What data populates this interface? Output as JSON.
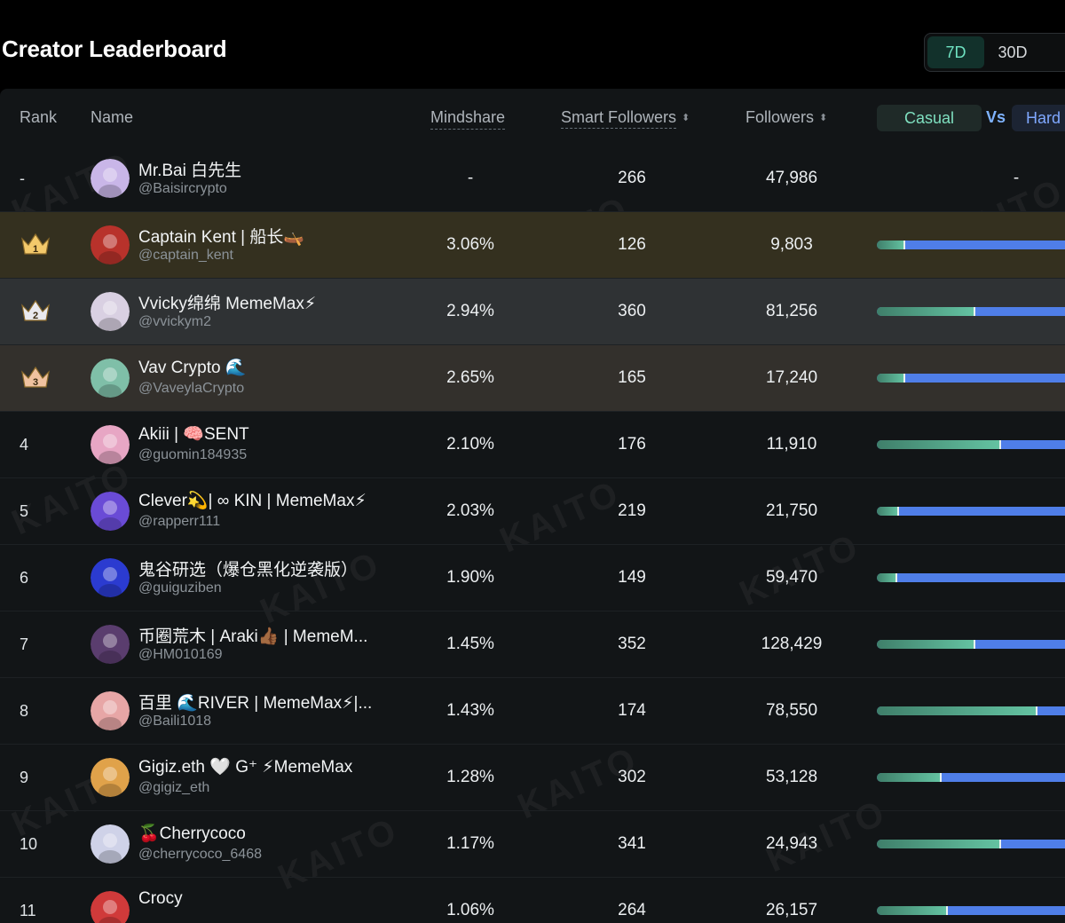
{
  "page": {
    "title": "Creator Leaderboard",
    "periods": [
      "7D",
      "30D"
    ],
    "active_period": "7D"
  },
  "table": {
    "columns": {
      "rank": "Rank",
      "name": "Name",
      "mindshare": "Mindshare",
      "smart_followers": "Smart Followers",
      "followers": "Followers",
      "casual": "Casual",
      "vs": "Vs",
      "hard": "Hard"
    },
    "sort_icon": "⬍",
    "watermark": "KAITO",
    "rows": [
      {
        "rank": "-",
        "crown": null,
        "name": "Mr.Bai 白先生",
        "handle": "@Baisircrypto",
        "mindshare": "-",
        "smart_followers": "266",
        "followers": "47,986",
        "casual_ratio": null,
        "casual_dash": "-",
        "avatar_color": "#c9b6e8",
        "highlight": ""
      },
      {
        "rank": "1",
        "crown": "gold",
        "name": "Captain Kent | 船长🛶",
        "handle": "@captain_kent",
        "mindshare": "3.06%",
        "smart_followers": "126",
        "followers": "9,803",
        "casual_ratio": 0.13,
        "avatar_color": "#b8322b",
        "highlight": "top1"
      },
      {
        "rank": "2",
        "crown": "silver",
        "name": "Vvicky绵绵 MemeMax⚡",
        "handle": "@vvickym2",
        "mindshare": "2.94%",
        "smart_followers": "360",
        "followers": "81,256",
        "casual_ratio": 0.46,
        "avatar_color": "#d9d0e2",
        "highlight": "top2"
      },
      {
        "rank": "3",
        "crown": "bronze",
        "name": "Vav Crypto 🌊",
        "handle": "@VaveylaCrypto",
        "mindshare": "2.65%",
        "smart_followers": "165",
        "followers": "17,240",
        "casual_ratio": 0.13,
        "avatar_color": "#7fbfa8",
        "highlight": "top3"
      },
      {
        "rank": "4",
        "crown": null,
        "name": "Akiii | 🧠SENT",
        "handle": "@guomin184935",
        "mindshare": "2.10%",
        "smart_followers": "176",
        "followers": "11,910",
        "casual_ratio": 0.58,
        "avatar_color": "#e7a6c4",
        "highlight": ""
      },
      {
        "rank": "5",
        "crown": null,
        "name": "Clever💫| ∞ KIN | MemeMax⚡",
        "handle": "@rapperr111",
        "mindshare": "2.03%",
        "smart_followers": "219",
        "followers": "21,750",
        "casual_ratio": 0.1,
        "avatar_color": "#6a4bd6",
        "highlight": ""
      },
      {
        "rank": "6",
        "crown": null,
        "name": "鬼谷研选（爆仓黑化逆袭版）",
        "handle": "@guiguziben",
        "mindshare": "1.90%",
        "smart_followers": "149",
        "followers": "59,470",
        "casual_ratio": 0.09,
        "avatar_color": "#2b3bd0",
        "highlight": ""
      },
      {
        "rank": "7",
        "crown": null,
        "name": "币圈荒木 | Araki👍🏾 | MemeM...",
        "handle": "@HM010169",
        "mindshare": "1.45%",
        "smart_followers": "352",
        "followers": "128,429",
        "casual_ratio": 0.46,
        "avatar_color": "#5a3d6e",
        "highlight": ""
      },
      {
        "rank": "8",
        "crown": null,
        "name": "百里 🌊RIVER | MemeMax⚡|...",
        "handle": "@Baili1018",
        "mindshare": "1.43%",
        "smart_followers": "174",
        "followers": "78,550",
        "casual_ratio": 0.75,
        "avatar_color": "#e7a6a6",
        "highlight": ""
      },
      {
        "rank": "9",
        "crown": null,
        "name": "Gigiz.eth 🤍 G⁺ ⚡MemeMax",
        "handle": "@gigiz_eth",
        "mindshare": "1.28%",
        "smart_followers": "302",
        "followers": "53,128",
        "casual_ratio": 0.3,
        "avatar_color": "#e0a24a",
        "highlight": ""
      },
      {
        "rank": "10",
        "crown": null,
        "name": "🍒Cherrycoco",
        "handle": "@cherrycoco_6468",
        "mindshare": "1.17%",
        "smart_followers": "341",
        "followers": "24,943",
        "casual_ratio": 0.58,
        "avatar_color": "#cfd2e8",
        "highlight": ""
      },
      {
        "rank": "11",
        "crown": null,
        "name": "Crocy",
        "handle": "",
        "mindshare": "1.06%",
        "smart_followers": "264",
        "followers": "26,157",
        "casual_ratio": 0.33,
        "avatar_color": "#d03a3a",
        "highlight": ""
      }
    ]
  }
}
